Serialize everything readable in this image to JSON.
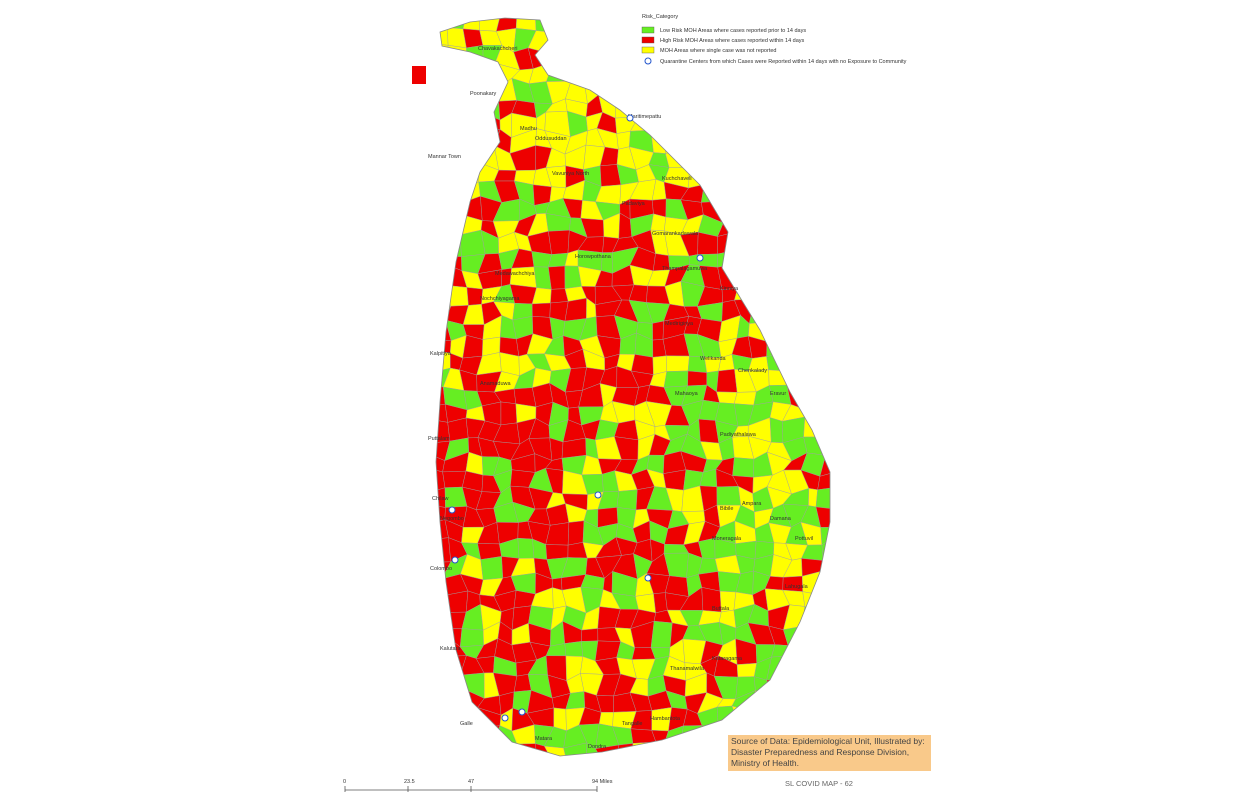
{
  "legend": {
    "title": "Risk_Category",
    "items": [
      {
        "label": "Low Risk MOH Areas where cases reported prior to 14 days",
        "color": "#66ee22"
      },
      {
        "label": "High Risk MOH Areas where cases reported within 14 days",
        "color": "#ee0000"
      },
      {
        "label": "MOH Areas where single case was not reported",
        "color": "#ffff00"
      },
      {
        "label": "Quarantine Centers from which Cases were Reported within 14 days with no Exposure to Community"
      }
    ]
  },
  "regions": [
    "Chavakachcheri",
    "Poonakary",
    "Maritimepattu",
    "Mannar Town",
    "Madhu",
    "Oddusuddan",
    "Vavuniya North",
    "Padaviya",
    "Kuchchaveli",
    "Gomarankadawala",
    "Horowpothana",
    "Medawachchiya",
    "Nochchiyagama",
    "Thampalagamuwa",
    "Kinniya",
    "Medirigiriya",
    "Welikanda",
    "Chenkalady",
    "Eravur",
    "Mahaoya",
    "Padiyathalawa",
    "Damana",
    "Lahugala",
    "Pottuvil",
    "Ampara",
    "Bibile",
    "Moneragala",
    "Buttala",
    "Kataragama",
    "Thanamalwila",
    "Hambantota",
    "Tangalle",
    "Kalpitiya",
    "Puttalam",
    "Anamaduwa",
    "Chilaw",
    "Negombo",
    "Colombo",
    "Kalutara",
    "Galle",
    "Matara",
    "Dondra"
  ],
  "scale_bar": {
    "labels": [
      "0",
      "23.5",
      "47",
      "94 Miles"
    ]
  },
  "source_note": "Source of Data: Epidemiological Unit, Illustrated by: Disaster Preparedness and Response Division, Ministry of Health.",
  "map_title": "SL COVID MAP - 62"
}
